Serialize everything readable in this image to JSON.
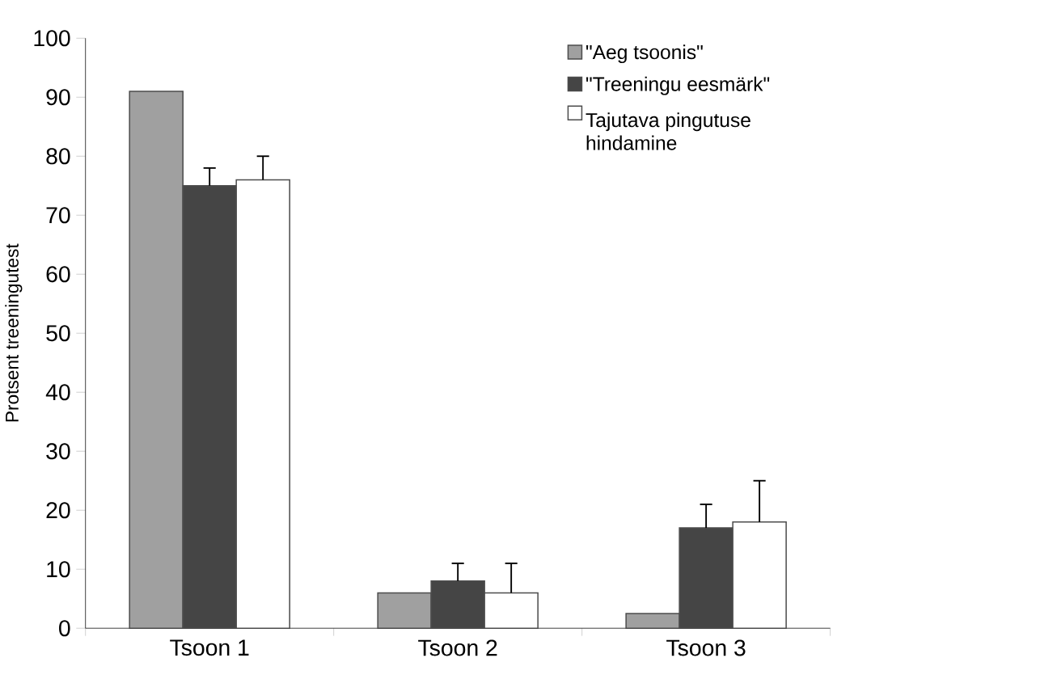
{
  "chart_data": {
    "type": "bar",
    "ylabel": "Protsent treeningutest",
    "categories": [
      "Tsoon 1",
      "Tsoon 2",
      "Tsoon 3"
    ],
    "series": [
      {
        "name": "\"Aeg tsoonis\"",
        "color": "#a0a0a0",
        "values": [
          91,
          6,
          2.5
        ]
      },
      {
        "name": "\"Treeningu eesmärk\"",
        "color": "#454545",
        "values": [
          75,
          8,
          17
        ],
        "errors": [
          [
            75,
            78
          ],
          [
            8,
            11
          ],
          [
            17,
            21
          ]
        ]
      },
      {
        "name": "Tajutava pingutuse hindamine",
        "color": "#ffffff",
        "values": [
          76,
          6,
          18
        ],
        "errors": [
          [
            76,
            80
          ],
          [
            6,
            11
          ],
          [
            18,
            25
          ]
        ]
      }
    ],
    "ylim": [
      0,
      100
    ],
    "yticks": [
      0,
      10,
      20,
      30,
      40,
      50,
      60,
      70,
      80,
      90,
      100
    ],
    "legend": "top right",
    "grid": false
  }
}
